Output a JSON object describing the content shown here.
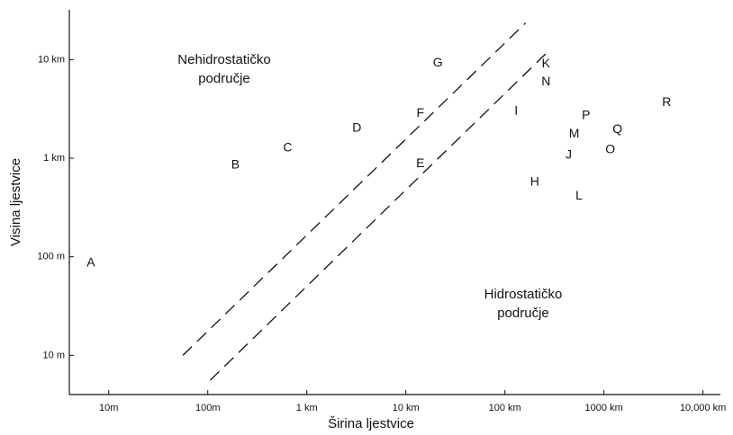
{
  "chart_data": {
    "type": "scatter",
    "xlabel": "Širina ljestvice",
    "ylabel": "Visina ljestvice",
    "xscale": "log",
    "yscale": "log",
    "xlim": [
      4,
      15000000
    ],
    "ylim": [
      4,
      32000
    ],
    "xticks": [
      {
        "value": 10,
        "label": "10m"
      },
      {
        "value": 100,
        "label": "100m"
      },
      {
        "value": 1000,
        "label": "1 km"
      },
      {
        "value": 10000,
        "label": "10 km"
      },
      {
        "value": 100000,
        "label": "100 km"
      },
      {
        "value": 1000000,
        "label": "1000 km"
      },
      {
        "value": 10000000,
        "label": "10,000 km"
      }
    ],
    "yticks": [
      {
        "value": 10,
        "label": "10 m"
      },
      {
        "value": 100,
        "label": "100 m"
      },
      {
        "value": 1000,
        "label": "1 km"
      },
      {
        "value": 10000,
        "label": "10 km"
      }
    ],
    "points": {
      "labels": [
        "A",
        "B",
        "C",
        "D",
        "E",
        "F",
        "G",
        "I",
        "K",
        "N",
        "H",
        "P",
        "M",
        "Q",
        "J",
        "O",
        "L",
        "R"
      ],
      "x": [
        6.6,
        190,
        640,
        3200,
        14000,
        14000,
        21000,
        130000,
        260000,
        260000,
        200000,
        660000,
        500000,
        1370000,
        440000,
        1160000,
        560000,
        4300000
      ],
      "y": [
        86,
        850,
        1260,
        2000,
        880,
        2850,
        9200,
        3000,
        9000,
        5900,
        570,
        2700,
        1760,
        1950,
        1070,
        1210,
        410,
        3660
      ]
    },
    "lines": [
      {
        "x": [
          56,
          162000
        ],
        "y": [
          10,
          23600
        ]
      },
      {
        "x": [
          106,
          273000
        ],
        "y": [
          5.6,
          12100
        ]
      }
    ],
    "annotations": [
      [
        "Nehidrostatičko",
        "područje"
      ],
      [
        "Hidrostatičko",
        "područje"
      ]
    ]
  }
}
